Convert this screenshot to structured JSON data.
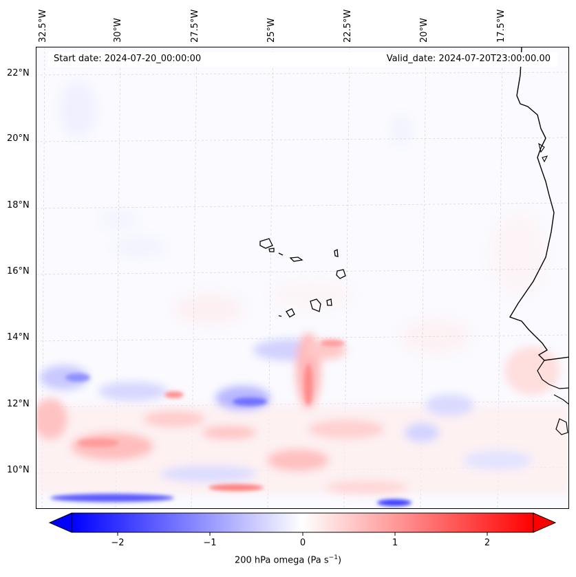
{
  "longitude_labels": [
    "32.5°W",
    "30°W",
    "27.5°W",
    "25°W",
    "22.5°W",
    "20°W",
    "17.5°W"
  ],
  "latitude_labels": [
    "22°N",
    "20°N",
    "18°N",
    "16°N",
    "14°N",
    "12°N",
    "10°N"
  ],
  "header": {
    "start_text": "Start date: 2024-07-20_00:00:00",
    "valid_text": "Valid_date: 2024-07-20T23:00:00.00"
  },
  "colorbar": {
    "ticks": [
      "−2",
      "−1",
      "0",
      "1",
      "2"
    ],
    "label": "200 hPa omega (Pa s",
    "label_sup": "−1",
    "label_end": ")",
    "colors": {
      "negative": "#0000ff",
      "neutral": "#ffffff",
      "positive": "#ff0000"
    }
  }
}
